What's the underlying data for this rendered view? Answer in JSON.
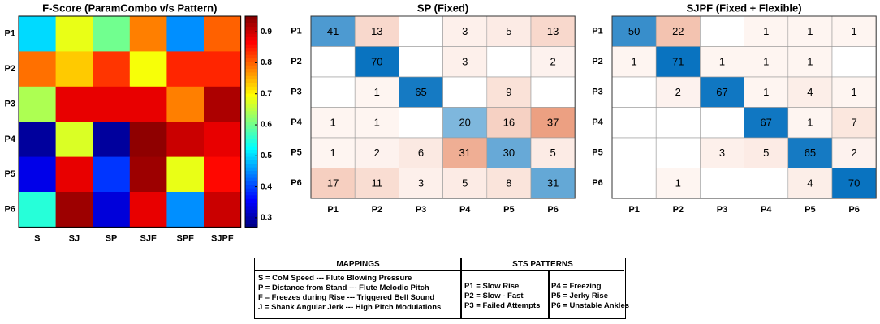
{
  "chart_data": [
    {
      "type": "heatmap",
      "title": "F-Score (ParamCombo v/s Pattern)",
      "rows": [
        "P1",
        "P2",
        "P3",
        "P4",
        "P5",
        "P6"
      ],
      "columns": [
        "S",
        "SJ",
        "SP",
        "SJF",
        "SPF",
        "SJPF"
      ],
      "values": [
        [
          0.5,
          0.68,
          0.6,
          0.78,
          0.45,
          0.8
        ],
        [
          0.79,
          0.73,
          0.83,
          0.69,
          0.84,
          0.84
        ],
        [
          0.64,
          0.88,
          0.88,
          0.88,
          0.78,
          0.92
        ],
        [
          0.29,
          0.67,
          0.29,
          0.94,
          0.9,
          0.88
        ],
        [
          0.34,
          0.88,
          0.39,
          0.93,
          0.68,
          0.86
        ],
        [
          0.55,
          0.93,
          0.33,
          0.88,
          0.45,
          0.9
        ]
      ],
      "colorbar": {
        "min": 0.27,
        "max": 0.95,
        "ticks": [
          "0.9",
          "0.8",
          "0.7",
          "0.6",
          "0.5",
          "0.4",
          "0.3"
        ],
        "tick_values": [
          0.9,
          0.8,
          0.7,
          0.6,
          0.5,
          0.4,
          0.3
        ]
      },
      "colormap": "jet"
    },
    {
      "type": "heatmap",
      "title": "SP (Fixed)",
      "rows": [
        "P1",
        "P2",
        "P3",
        "P4",
        "P5",
        "P6"
      ],
      "columns": [
        "P1",
        "P2",
        "P3",
        "P4",
        "P5",
        "P6"
      ],
      "values": [
        [
          41,
          13,
          null,
          3,
          5,
          13
        ],
        [
          null,
          70,
          null,
          3,
          null,
          2
        ],
        [
          null,
          1,
          65,
          null,
          9,
          null
        ],
        [
          1,
          1,
          null,
          20,
          16,
          37
        ],
        [
          1,
          2,
          6,
          31,
          30,
          5
        ],
        [
          17,
          11,
          3,
          5,
          8,
          31
        ]
      ]
    },
    {
      "type": "heatmap",
      "title": "SJPF (Fixed + Flexible)",
      "rows": [
        "P1",
        "P2",
        "P3",
        "P4",
        "P5",
        "P6"
      ],
      "columns": [
        "P1",
        "P2",
        "P3",
        "P4",
        "P5",
        "P6"
      ],
      "values": [
        [
          50,
          22,
          null,
          1,
          1,
          1
        ],
        [
          1,
          71,
          1,
          1,
          1,
          null
        ],
        [
          null,
          2,
          67,
          1,
          4,
          1
        ],
        [
          null,
          null,
          null,
          67,
          1,
          7
        ],
        [
          null,
          null,
          3,
          5,
          65,
          2
        ],
        [
          null,
          1,
          null,
          null,
          4,
          70
        ]
      ]
    }
  ],
  "legend_table": {
    "mappings_header": "MAPPINGS",
    "patterns_header": "STS PATTERNS",
    "mappings": [
      "S = CoM Speed --- Flute Blowing Pressure",
      "P = Distance from Stand --- Flute Melodic Pitch",
      "F = Freezes during Rise --- Triggered Bell Sound",
      "J = Shank Angular Jerk --- High Pitch Modulations"
    ],
    "patterns_left": [
      "P1 = Slow Rise",
      "P2 = Slow - Fast",
      "P3 = Failed Attempts"
    ],
    "patterns_right": [
      "P4 = Freezing",
      "P5 = Jerky Rise",
      "P6 = Unstable Ankles"
    ]
  }
}
